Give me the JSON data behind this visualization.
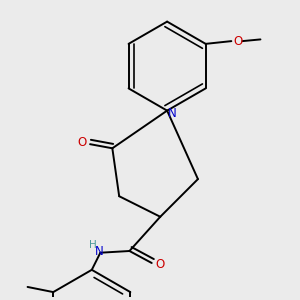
{
  "background_color": "#ebebeb",
  "atom_colors": {
    "C": "#000000",
    "N": "#0000cc",
    "O": "#cc0000",
    "H": "#4a9a9a"
  },
  "figsize": [
    3.0,
    3.0
  ],
  "dpi": 100,
  "bond_lw": 1.4,
  "font_size_atom": 8.5,
  "font_size_H": 7.5
}
